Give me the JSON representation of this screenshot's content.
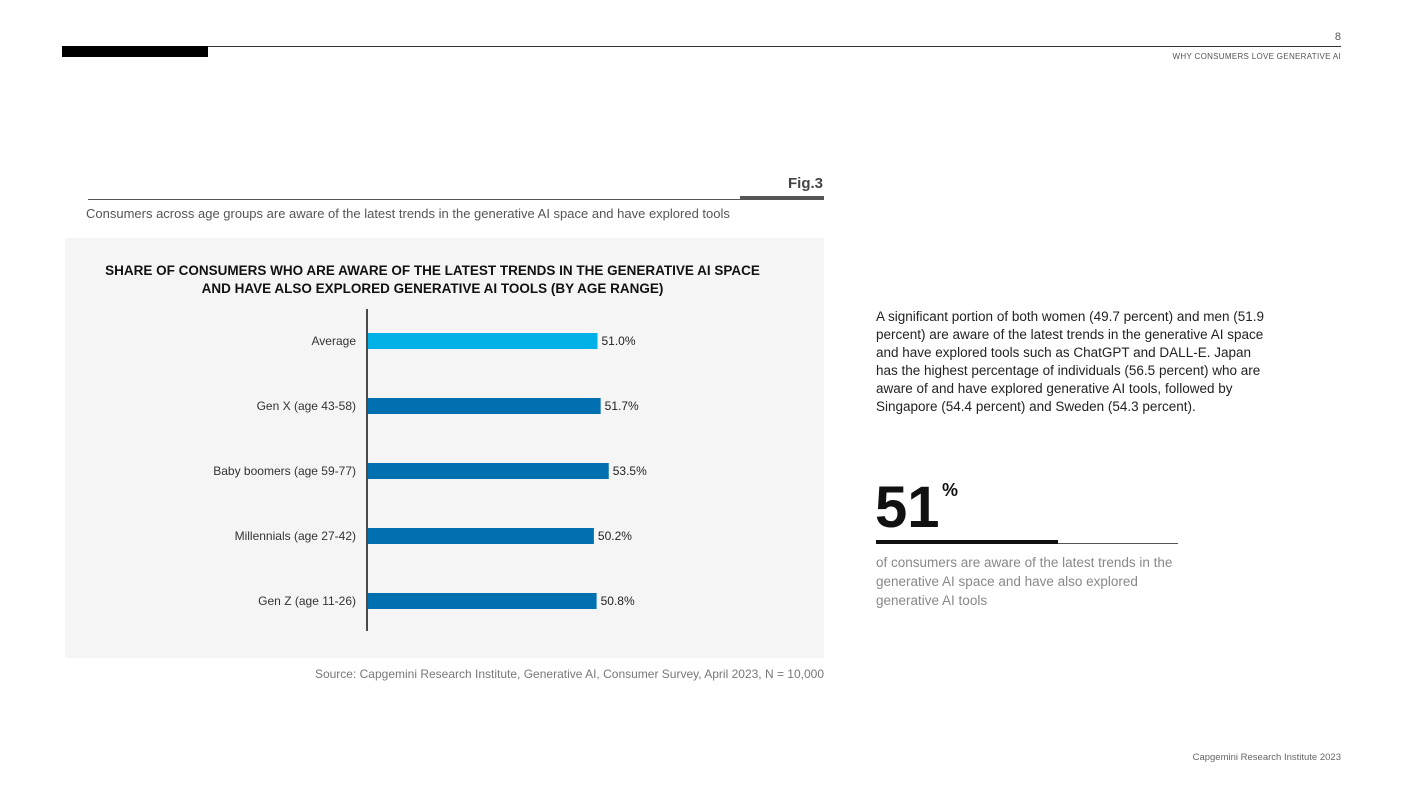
{
  "header": {
    "page_number": "8",
    "section_title": "WHY CONSUMERS LOVE GENERATIVE AI"
  },
  "figure": {
    "label": "Fig.3",
    "caption": "Consumers across age groups are aware of the latest trends in the generative AI space and have explored tools",
    "source": "Source: Capgemini Research Institute, Generative AI, Consumer Survey, April 2023, N = 10,000"
  },
  "chart_data": {
    "type": "bar",
    "orientation": "horizontal",
    "title": "SHARE OF CONSUMERS WHO ARE AWARE OF THE LATEST TRENDS IN THE GENERATIVE AI SPACE AND HAVE ALSO EXPLORED GENERATIVE AI TOOLS (BY AGE RANGE)",
    "categories": [
      "Average",
      "Gen X (age 43-58)",
      "Baby boomers (age 59-77)",
      "Millennials (age 27-42)",
      "Gen Z (age 11-26)"
    ],
    "values": [
      51.0,
      51.7,
      53.5,
      50.2,
      50.8
    ],
    "value_labels": [
      "51.0%",
      "51.7%",
      "53.5%",
      "50.2%",
      "50.8%"
    ],
    "colors": [
      "#00b0e6",
      "#0070b0",
      "#0070b0",
      "#0070b0",
      "#0070b0"
    ],
    "xlim": [
      0,
      100
    ],
    "grid": false
  },
  "sidebar": {
    "paragraph": "A significant portion of both women (49.7 percent) and men (51.9 percent) are aware of the latest trends in the generative AI space and have explored tools such as ChatGPT and DALL-E. Japan has the highest percentage of individuals (56.5 percent) who are aware of and have explored generative AI tools, followed by Singapore (54.4 percent) and Sweden (54.3 percent).",
    "stat_value": "51",
    "stat_unit": "%",
    "stat_caption": "of consumers are aware of the latest trends in the generative AI space and have also explored generative AI tools"
  },
  "footer": {
    "text": "Capgemini Research Institute 2023"
  }
}
